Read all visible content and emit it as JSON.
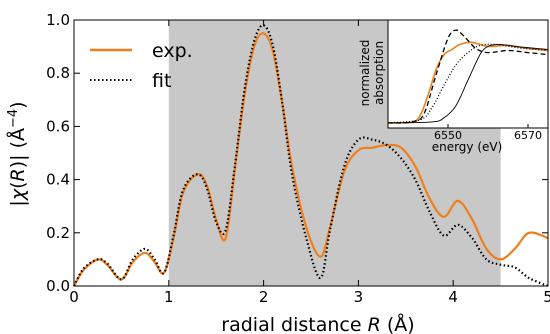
{
  "chart_data": [
    {
      "type": "line",
      "xlabel": "radial distance $R$ (Å)",
      "ylabel": "|χ(R)| (Å⁻⁴)",
      "xlim": [
        0,
        5
      ],
      "ylim": [
        0,
        1.0
      ],
      "xticks": [
        "0",
        "1",
        "2",
        "3",
        "4",
        "5"
      ],
      "yticks": [
        "0.0",
        "0.2",
        "0.4",
        "0.6",
        "0.8",
        "1.0"
      ],
      "shaded_region": [
        1.0,
        4.5
      ],
      "shaded_color": "#c8c8c8",
      "legend_position": "top-left",
      "series": [
        {
          "name": "exp.",
          "color": "#f07f1a",
          "style": "solid",
          "x": [
            0.0,
            0.1,
            0.25,
            0.35,
            0.5,
            0.62,
            0.75,
            0.85,
            0.95,
            1.05,
            1.15,
            1.3,
            1.4,
            1.5,
            1.6,
            1.7,
            1.8,
            1.9,
            2.0,
            2.1,
            2.2,
            2.3,
            2.45,
            2.6,
            2.7,
            2.85,
            3.0,
            3.15,
            3.3,
            3.45,
            3.6,
            3.75,
            3.9,
            4.05,
            4.2,
            4.35,
            4.5,
            4.65,
            4.8,
            5.0
          ],
          "y": [
            0.0,
            0.06,
            0.1,
            0.08,
            0.025,
            0.09,
            0.125,
            0.09,
            0.05,
            0.18,
            0.35,
            0.42,
            0.38,
            0.25,
            0.18,
            0.45,
            0.72,
            0.9,
            0.95,
            0.88,
            0.68,
            0.45,
            0.22,
            0.11,
            0.22,
            0.43,
            0.51,
            0.52,
            0.53,
            0.52,
            0.45,
            0.33,
            0.26,
            0.32,
            0.25,
            0.14,
            0.1,
            0.14,
            0.2,
            0.18
          ]
        },
        {
          "name": "fit",
          "color": "#000000",
          "style": "dotted",
          "x": [
            0.0,
            0.1,
            0.25,
            0.35,
            0.5,
            0.62,
            0.75,
            0.85,
            0.95,
            1.05,
            1.15,
            1.3,
            1.4,
            1.5,
            1.6,
            1.7,
            1.8,
            1.9,
            2.0,
            2.1,
            2.2,
            2.3,
            2.45,
            2.6,
            2.7,
            2.85,
            3.0,
            3.15,
            3.3,
            3.45,
            3.6,
            3.75,
            3.9,
            4.05,
            4.2,
            4.35,
            4.5,
            4.65,
            4.8,
            5.0
          ],
          "y": [
            0.0,
            0.065,
            0.1,
            0.085,
            0.025,
            0.1,
            0.14,
            0.1,
            0.05,
            0.19,
            0.36,
            0.42,
            0.37,
            0.24,
            0.21,
            0.46,
            0.74,
            0.92,
            0.98,
            0.9,
            0.68,
            0.42,
            0.18,
            0.03,
            0.21,
            0.45,
            0.55,
            0.55,
            0.53,
            0.48,
            0.4,
            0.28,
            0.19,
            0.23,
            0.18,
            0.1,
            0.08,
            0.07,
            0.03,
            0.0
          ]
        }
      ]
    },
    {
      "type": "line",
      "xlabel": "energy (eV)",
      "ylabel": "normalized absorption",
      "xlim": [
        6535,
        6575
      ],
      "xticks": [
        "6550",
        "6570"
      ],
      "series": [
        {
          "style": "solid",
          "color": "#f07f1a",
          "x": [
            6535,
            6541,
            6543,
            6545,
            6547,
            6549,
            6551,
            6553,
            6556,
            6560,
            6565,
            6570,
            6575
          ],
          "y": [
            0.03,
            0.04,
            0.1,
            0.3,
            0.55,
            0.7,
            0.75,
            0.8,
            0.82,
            0.78,
            0.79,
            0.76,
            0.74
          ]
        },
        {
          "style": "dashed",
          "color": "#000000",
          "x": [
            6535,
            6541,
            6544,
            6547,
            6550,
            6552,
            6554,
            6557,
            6560,
            6565,
            6570,
            6575
          ],
          "y": [
            0.03,
            0.04,
            0.12,
            0.5,
            0.86,
            0.94,
            0.88,
            0.76,
            0.72,
            0.74,
            0.72,
            0.7
          ]
        },
        {
          "style": "dotted",
          "color": "#000000",
          "x": [
            6535,
            6543,
            6546,
            6549,
            6552,
            6555,
            6558,
            6562,
            6567,
            6575
          ],
          "y": [
            0.03,
            0.06,
            0.18,
            0.4,
            0.6,
            0.72,
            0.79,
            0.8,
            0.77,
            0.74
          ]
        },
        {
          "style": "thin",
          "color": "#000000",
          "x": [
            6535,
            6546,
            6549,
            6552,
            6555,
            6558,
            6560,
            6563,
            6567,
            6575
          ],
          "y": [
            0.03,
            0.04,
            0.08,
            0.2,
            0.45,
            0.7,
            0.78,
            0.8,
            0.78,
            0.75
          ]
        }
      ]
    }
  ]
}
